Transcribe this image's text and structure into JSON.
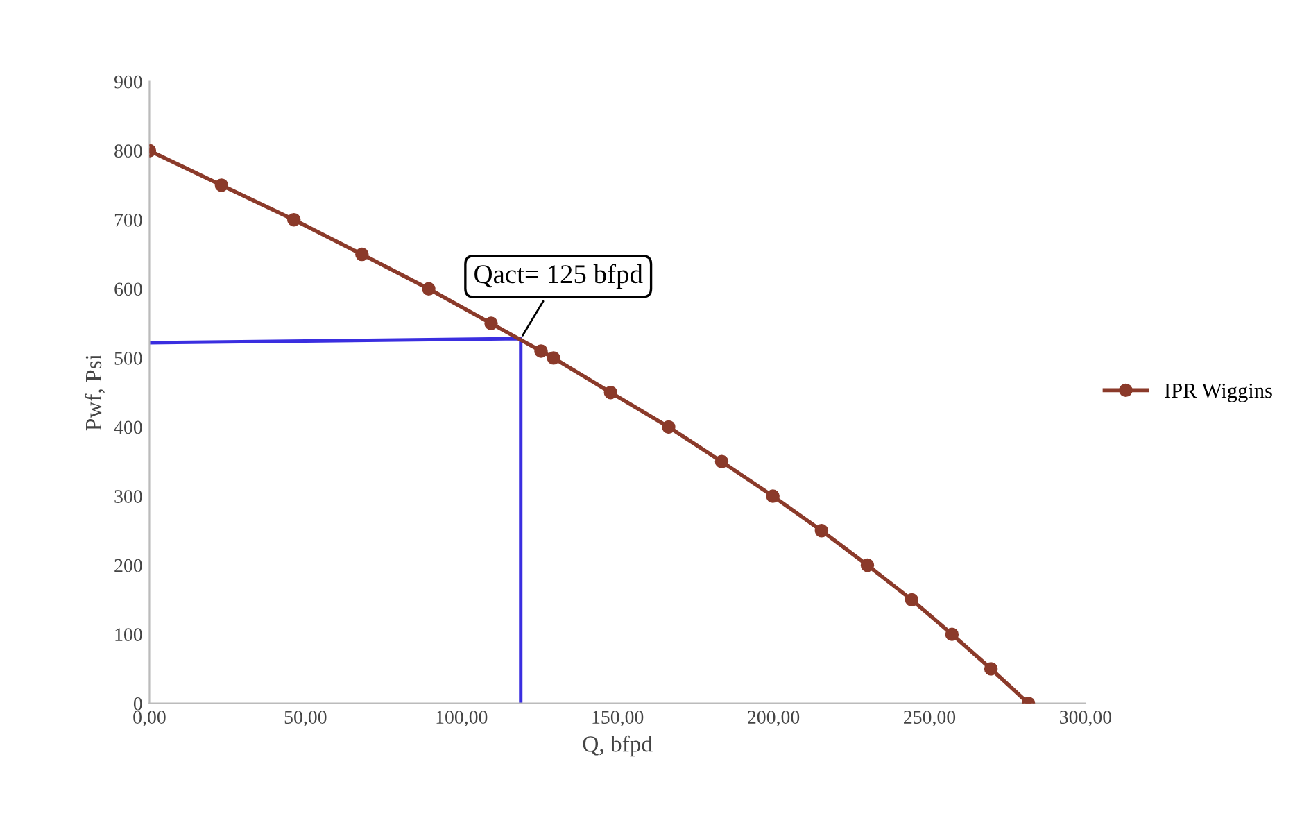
{
  "chart_data": {
    "type": "line",
    "xlabel": "Q, bfpd",
    "ylabel": "Pwf, Psi",
    "xlim": [
      0,
      300
    ],
    "xticks": [
      {
        "value": 0,
        "label": "0,00"
      },
      {
        "value": 50,
        "label": "50,00"
      },
      {
        "value": 100,
        "label": "100,00"
      },
      {
        "value": 150,
        "label": "150,00"
      },
      {
        "value": 200,
        "label": "200,00"
      },
      {
        "value": 250,
        "label": "250,00"
      },
      {
        "value": 300,
        "label": "300,00"
      }
    ],
    "ylim": [
      0,
      900
    ],
    "yticks": [
      0,
      100,
      200,
      300,
      400,
      500,
      600,
      700,
      800,
      900
    ],
    "grid": false,
    "legend": "right",
    "series": [
      {
        "name": "IPR Wiggins",
        "color": "#8b3a2a",
        "marker": "circle",
        "x": [
          0,
          23.1,
          46.3,
          68.1,
          89.5,
          109.5,
          125.5,
          129.5,
          147.8,
          166.4,
          183.4,
          199.8,
          215.4,
          230.1,
          244.3,
          257.2,
          269.7,
          281.7
        ],
        "values": [
          800,
          750,
          700,
          650,
          600,
          550,
          510,
          500,
          450,
          400,
          350,
          300,
          250,
          200,
          150,
          100,
          50,
          0
        ]
      },
      {
        "color": "#3a2ee0",
        "marker": "none",
        "x": [
          0,
          119,
          119
        ],
        "values": [
          522,
          528,
          0
        ]
      }
    ],
    "annotations": [
      {
        "text": "Qact= 125 bfpd",
        "x": 119,
        "y": 528
      }
    ]
  }
}
